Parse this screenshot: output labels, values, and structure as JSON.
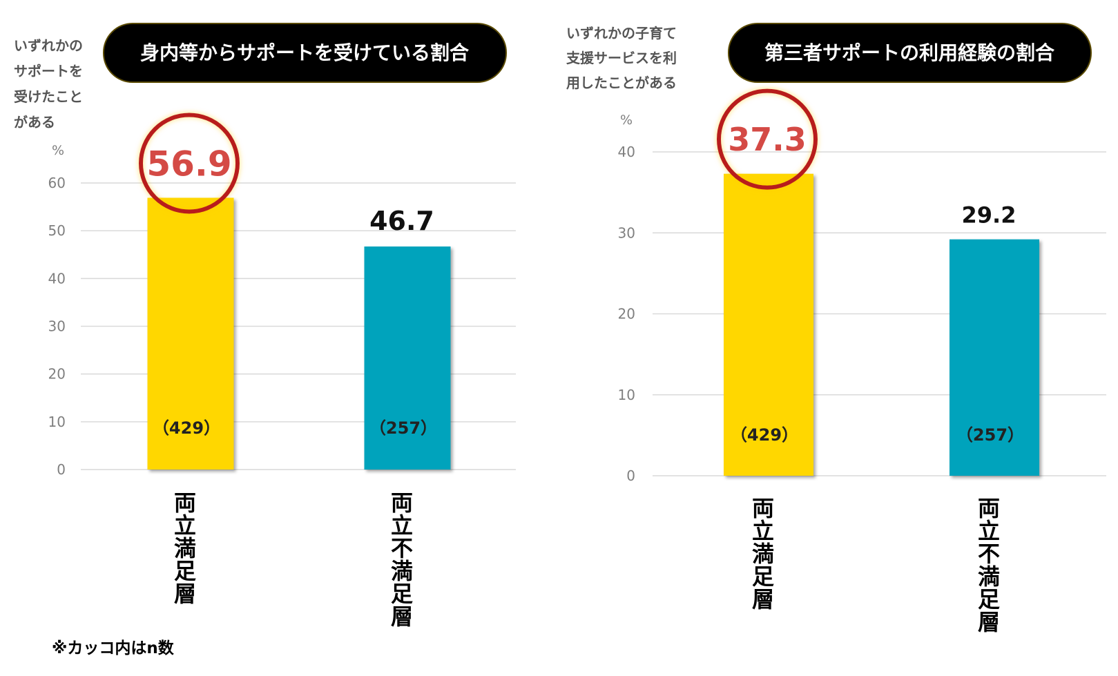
{
  "note": "※カッコ内はn数",
  "chart_data": [
    {
      "type": "bar",
      "title": "身内等からサポートを受けている割合",
      "ylabel_lines": [
        "いずれかの",
        "サポートを",
        "受けたこと",
        "がある"
      ],
      "unit": "%",
      "categories": [
        "両立満足層",
        "両立不満足層"
      ],
      "values": [
        56.9,
        46.7
      ],
      "value_labels": [
        "56.9",
        "46.7"
      ],
      "n_labels": [
        "（429）",
        "（257）"
      ],
      "highlight_index": 0,
      "ylim": [
        0,
        60
      ],
      "yticks": [
        0,
        10,
        20,
        30,
        40,
        50,
        60
      ],
      "grid": true
    },
    {
      "type": "bar",
      "title": "第三者サポートの利用経験の割合",
      "ylabel_lines": [
        "いずれかの子育て",
        "支援サービスを利",
        "用したことがある"
      ],
      "unit": "%",
      "categories": [
        "両立満足層",
        "両立不満足層"
      ],
      "values": [
        37.3,
        29.2
      ],
      "value_labels": [
        "37.3",
        "29.2"
      ],
      "n_labels": [
        "（429）",
        "（257）"
      ],
      "highlight_index": 0,
      "ylim": [
        0,
        40
      ],
      "yticks": [
        0,
        10,
        20,
        30,
        40
      ],
      "grid": true
    }
  ],
  "colors": {
    "bar_satisfied": "#FFD700",
    "bar_unsatisfied": "#00A3BC",
    "highlight_text": "#D44A45",
    "highlight_ring": "#B81C1C",
    "grid": "#D9D9D9",
    "tick_text": "#7F7F7F",
    "title_bg": "#000000",
    "title_text": "#FFFFFF"
  }
}
